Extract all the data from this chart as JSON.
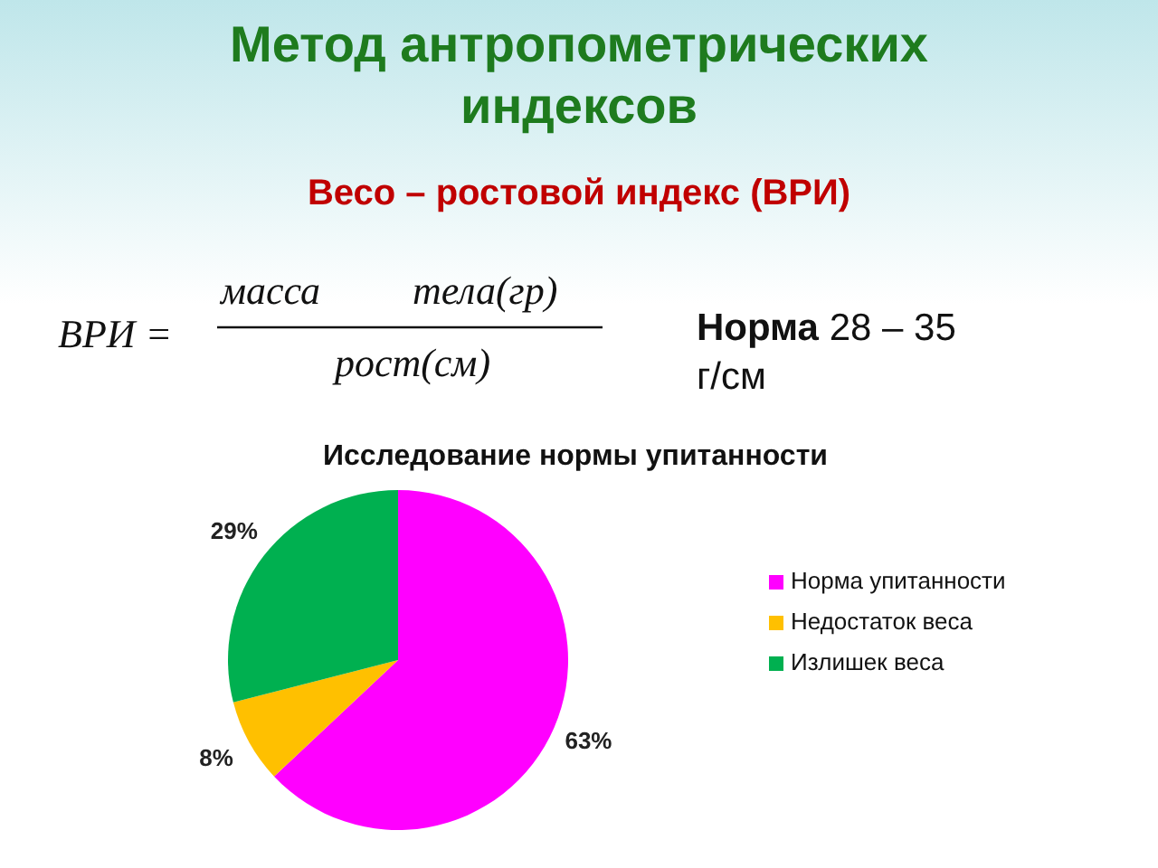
{
  "chart_data": {
    "type": "pie",
    "title": "Метод антропометрических индексов",
    "subtitle": "Весо – ростовой индекс  (ВРИ)",
    "annotations": [
      "ВРИ =",
      "масса",
      "тела(гр)",
      "рост(см)",
      "Норма 28 – 35 г/см",
      "Исследование нормы упитанности"
    ],
    "categories": [
      "Норма упитанности",
      "Недостаток веса",
      "Излишек веса"
    ],
    "values": [
      63,
      8,
      29
    ],
    "value_labels": [
      "63%",
      "8%",
      "29%"
    ],
    "colors": [
      "#ff00ff",
      "#ffc000",
      "#00b050"
    ],
    "legend": "right"
  }
}
